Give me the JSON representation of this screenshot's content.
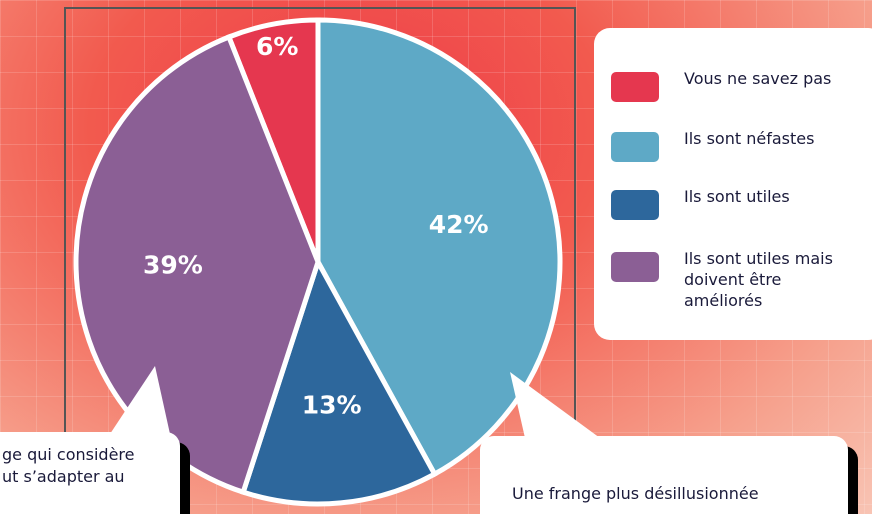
{
  "chart_data": {
    "type": "pie",
    "categories": [
      "Vous ne savez pas",
      "Ils sont néfastes",
      "Ils sont utiles",
      "Ils sont utiles mais doivent être améliorés"
    ],
    "values": [
      6,
      42,
      13,
      39
    ],
    "value_labels": [
      "6%",
      "42%",
      "13%",
      "39%"
    ],
    "colors": [
      "#e5374f",
      "#5ea9c6",
      "#2d679c",
      "#8b5f95"
    ],
    "legend": "right",
    "annotations": [
      "ge qui considère",
      "ut s’adapter au",
      "Une frange plus désillusionnée"
    ]
  }
}
